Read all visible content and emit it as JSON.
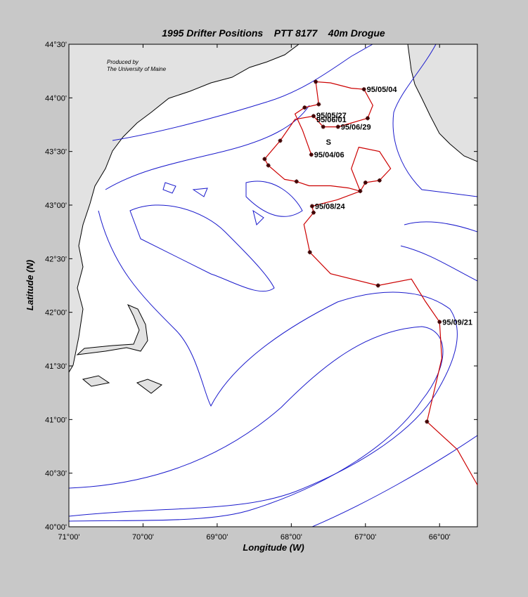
{
  "chart_data": {
    "type": "track",
    "title": "1995 Drifter Positions    PTT 8177    40m Drogue",
    "x_label": "Longitude (W)",
    "y_label": "Latitude (N)",
    "credit": [
      "Produced by",
      "The University of Maine"
    ],
    "xlim": [
      -71,
      -65.49
    ],
    "ylim": [
      40,
      44.5
    ],
    "xticks": [
      {
        "value": -71,
        "label": "71°00'"
      },
      {
        "value": -70,
        "label": "70°00'"
      },
      {
        "value": -69,
        "label": "69°00'"
      },
      {
        "value": -68,
        "label": "68°00'"
      },
      {
        "value": -67,
        "label": "67°00'"
      },
      {
        "value": -66,
        "label": "66°00'"
      }
    ],
    "yticks": [
      {
        "value": 40,
        "label": "40°00'"
      },
      {
        "value": 40.5,
        "label": "40°30'"
      },
      {
        "value": 41,
        "label": "41°00'"
      },
      {
        "value": 41.5,
        "label": "41°30'"
      },
      {
        "value": 42,
        "label": "42°00'"
      },
      {
        "value": 42.5,
        "label": "42°30'"
      },
      {
        "value": 43,
        "label": "43°00'"
      },
      {
        "value": 43.5,
        "label": "43°30'"
      },
      {
        "value": 44,
        "label": "44°00'"
      },
      {
        "value": 44.5,
        "label": "44°30'"
      }
    ],
    "track": {
      "color": "#cc0000",
      "x": [
        -67.73,
        -67.85,
        -67.95,
        -67.82,
        -67.63,
        -67.67,
        -67.47,
        -67.19,
        -67.02,
        -66.9,
        -66.97,
        -67.37,
        -67.57,
        -67.7,
        -67.95,
        -68.15,
        -68.36,
        -68.31,
        -68.09,
        -67.93,
        -67.76,
        -67.47,
        -67.23,
        -67.07,
        -67.0,
        -66.81,
        -66.66,
        -66.81,
        -67.09,
        -67.19,
        -67.07,
        -67.38,
        -67.72,
        -67.7,
        -67.83,
        -67.75,
        -67.47,
        -66.83,
        -66.38,
        -66.19,
        -66.0,
        -65.97,
        -66.17,
        -65.76,
        -65.49
      ],
      "y": [
        43.47,
        43.7,
        43.85,
        43.91,
        43.94,
        44.15,
        44.14,
        44.09,
        44.08,
        43.93,
        43.81,
        43.73,
        43.73,
        43.83,
        43.8,
        43.6,
        43.43,
        43.37,
        43.24,
        43.22,
        43.18,
        43.18,
        43.16,
        43.13,
        43.21,
        43.23,
        43.34,
        43.5,
        43.54,
        43.34,
        43.13,
        43.05,
        42.99,
        42.93,
        42.82,
        42.56,
        42.36,
        42.25,
        42.31,
        42.1,
        41.91,
        41.57,
        40.98,
        40.72,
        40.39
      ]
    },
    "markers": {
      "color": "#400000",
      "x": [
        -67.73,
        -67.82,
        -67.63,
        -67.67,
        -67.02,
        -66.97,
        -67.37,
        -67.57,
        -67.7,
        -68.15,
        -68.36,
        -68.31,
        -67.93,
        -66.81,
        -67.0,
        -67.07,
        -67.72,
        -67.7,
        -67.75,
        -66.83,
        -66.0,
        -66.17
      ],
      "y": [
        43.47,
        43.91,
        43.94,
        44.15,
        44.08,
        43.81,
        43.73,
        43.73,
        43.83,
        43.6,
        43.43,
        43.37,
        43.22,
        43.23,
        43.21,
        43.13,
        42.99,
        42.93,
        42.56,
        42.25,
        41.91,
        40.98
      ]
    },
    "annotations": [
      {
        "text": "95/05/04",
        "x": -67.02,
        "y": 44.08
      },
      {
        "text": "95/05/27",
        "x": -67.7,
        "y": 43.84
      },
      {
        "text": "95/06/01",
        "x": -67.7,
        "y": 43.8
      },
      {
        "text": "95/06/29",
        "x": -67.37,
        "y": 43.73
      },
      {
        "text": "95/04/06",
        "x": -67.73,
        "y": 43.47
      },
      {
        "text": "95/08/24",
        "x": -67.72,
        "y": 42.99
      },
      {
        "text": "95/09/21",
        "x": -66.0,
        "y": 41.91
      },
      {
        "text": "S",
        "x": -67.57,
        "y": 43.59
      }
    ]
  }
}
